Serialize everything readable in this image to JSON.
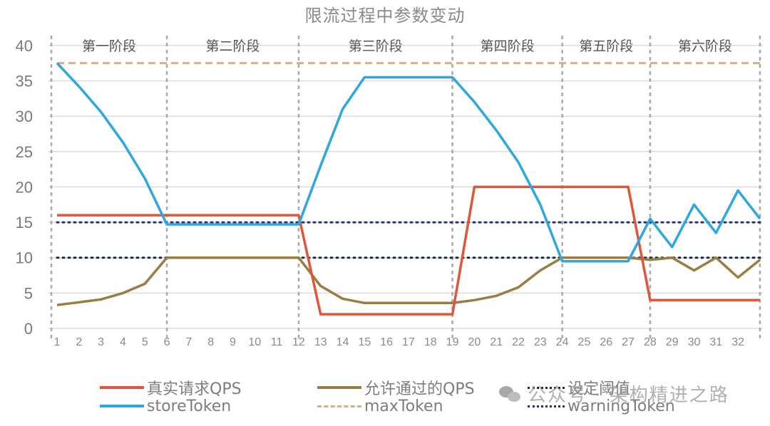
{
  "chart_data": {
    "type": "line",
    "title": "限流过程中参数变动",
    "xlabel": "",
    "ylabel": "",
    "ylim": [
      0,
      40
    ],
    "yticks": [
      0,
      5,
      10,
      15,
      20,
      25,
      30,
      35,
      40
    ],
    "x": [
      1,
      2,
      3,
      4,
      5,
      6,
      7,
      8,
      9,
      10,
      11,
      12,
      13,
      14,
      15,
      16,
      17,
      18,
      19,
      20,
      21,
      22,
      23,
      24,
      25,
      26,
      27,
      28,
      29,
      30,
      31,
      32,
      33
    ],
    "xtick_labels": [
      "1",
      "2",
      "3",
      "4",
      "5",
      "6",
      "7",
      "8",
      "9",
      "10",
      "11",
      "12",
      "13",
      "14",
      "15",
      "16",
      "17",
      "18",
      "19",
      "20",
      "21",
      "22",
      "23",
      "24",
      "25",
      "26",
      "27",
      "28",
      "29",
      "30",
      "31",
      "32"
    ],
    "grid": true,
    "legend_position": "bottom",
    "phases": [
      {
        "label": "第一阶段",
        "start": 1,
        "end": 6
      },
      {
        "label": "第二阶段",
        "start": 6,
        "end": 12
      },
      {
        "label": "第三阶段",
        "start": 12,
        "end": 19
      },
      {
        "label": "第四阶段",
        "start": 19,
        "end": 24
      },
      {
        "label": "第五阶段",
        "start": 24,
        "end": 28
      },
      {
        "label": "第六阶段",
        "start": 28,
        "end": 33
      }
    ],
    "series": [
      {
        "name": "真实请求QPS",
        "color": "#e0563a",
        "style": "solid",
        "values": [
          16,
          16,
          16,
          16,
          16,
          16,
          16,
          16,
          16,
          16,
          16,
          16,
          2,
          2,
          2,
          2,
          2,
          2,
          2,
          20,
          20,
          20,
          20,
          20,
          20,
          20,
          20,
          4,
          4,
          4,
          4,
          4,
          4
        ]
      },
      {
        "name": "允许通过的QPS",
        "color": "#9a7d43",
        "style": "solid",
        "values": [
          3.3,
          3.7,
          4.1,
          5.0,
          6.3,
          10,
          10,
          10,
          10,
          10,
          10,
          10,
          6,
          4.2,
          3.6,
          3.6,
          3.6,
          3.6,
          3.6,
          4,
          4.6,
          5.8,
          8.2,
          10,
          10,
          10,
          10,
          9.7,
          10,
          8.2,
          10,
          7.2,
          9.7
        ]
      },
      {
        "name": "设定阈值",
        "color": "#1f2a44",
        "style": "dotted",
        "values": [
          10,
          10,
          10,
          10,
          10,
          10,
          10,
          10,
          10,
          10,
          10,
          10,
          10,
          10,
          10,
          10,
          10,
          10,
          10,
          10,
          10,
          10,
          10,
          10,
          10,
          10,
          10,
          10,
          10,
          10,
          10,
          10,
          10
        ]
      },
      {
        "name": "storeToken",
        "color": "#2ea7e0",
        "style": "solid",
        "values": [
          37.5,
          34.2,
          30.6,
          26.3,
          21.2,
          14.7,
          14.7,
          14.7,
          14.7,
          14.7,
          14.7,
          14.7,
          23,
          31,
          35.5,
          35.5,
          35.5,
          35.5,
          35.5,
          32,
          28,
          23.5,
          17.5,
          9.5,
          9.5,
          9.5,
          9.5,
          15.5,
          11.5,
          17.5,
          13.5,
          19.5,
          15.5
        ]
      },
      {
        "name": "maxToken",
        "color": "#d4b27a",
        "style": "dashed",
        "values": [
          37.5,
          37.5,
          37.5,
          37.5,
          37.5,
          37.5,
          37.5,
          37.5,
          37.5,
          37.5,
          37.5,
          37.5,
          37.5,
          37.5,
          37.5,
          37.5,
          37.5,
          37.5,
          37.5,
          37.5,
          37.5,
          37.5,
          37.5,
          37.5,
          37.5,
          37.5,
          37.5,
          37.5,
          37.5,
          37.5,
          37.5,
          37.5,
          37.5
        ]
      },
      {
        "name": "warningToken",
        "color": "#23307a",
        "style": "dotted",
        "values": [
          15,
          15,
          15,
          15,
          15,
          15,
          15,
          15,
          15,
          15,
          15,
          15,
          15,
          15,
          15,
          15,
          15,
          15,
          15,
          15,
          15,
          15,
          15,
          15,
          15,
          15,
          15,
          15,
          15,
          15,
          15,
          15,
          15
        ]
      }
    ]
  },
  "legend": {
    "items": [
      {
        "label": "真实请求QPS"
      },
      {
        "label": "允许通过的QPS"
      },
      {
        "label": "设定阈值"
      },
      {
        "label": "storeToken"
      },
      {
        "label": "maxToken"
      },
      {
        "label": "warningToken"
      }
    ]
  },
  "watermark": {
    "text": "公众号 · 架构精进之路"
  }
}
